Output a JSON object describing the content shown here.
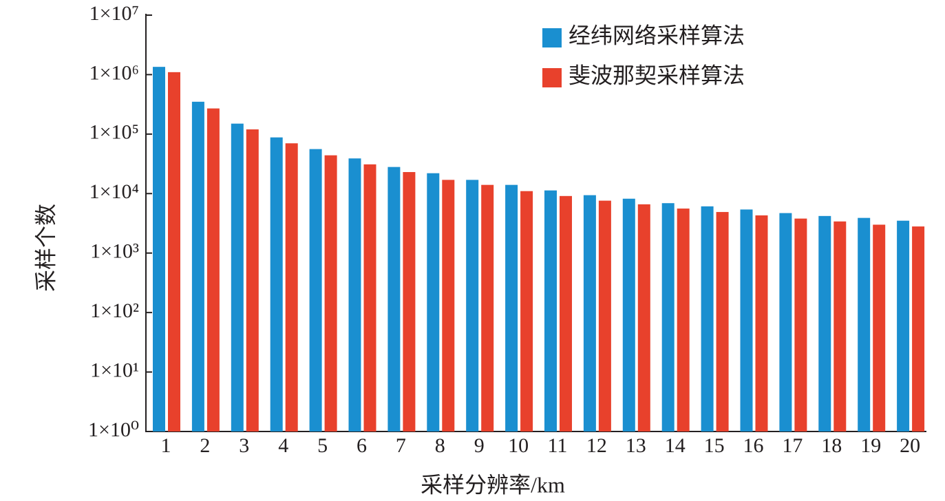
{
  "chart_data": {
    "type": "bar",
    "log_scale": true,
    "x_label": "采样分辨率/km",
    "y_label": "采样个数",
    "categories": [
      "1",
      "2",
      "3",
      "4",
      "5",
      "6",
      "7",
      "8",
      "9",
      "10",
      "11",
      "12",
      "13",
      "14",
      "15",
      "16",
      "17",
      "18",
      "19",
      "20"
    ],
    "series": [
      {
        "name": "经纬网络采样算法",
        "color": "#1a8fd0",
        "values": [
          1350000,
          350000,
          150000,
          88000,
          56000,
          39000,
          28000,
          22000,
          17000,
          14000,
          11300,
          9400,
          8200,
          6900,
          6100,
          5400,
          4700,
          4200,
          3900,
          3500
        ]
      },
      {
        "name": "斐波那契采样算法",
        "color": "#e8412c",
        "values": [
          1100000,
          270000,
          120000,
          70000,
          44000,
          31000,
          23000,
          17000,
          14000,
          11000,
          9100,
          7600,
          6600,
          5600,
          4900,
          4300,
          3800,
          3400,
          3000,
          2800
        ]
      }
    ],
    "ylim": [
      1,
      10000000
    ],
    "yticks": [
      {
        "value": 1,
        "label": "1×10⁰"
      },
      {
        "value": 10,
        "label": "1×10¹"
      },
      {
        "value": 100,
        "label": "1×10²"
      },
      {
        "value": 1000,
        "label": "1×10³"
      },
      {
        "value": 10000,
        "label": "1×10⁴"
      },
      {
        "value": 100000,
        "label": "1×10⁵"
      },
      {
        "value": 1000000,
        "label": "1×10⁶"
      },
      {
        "value": 10000000,
        "label": "1×10⁷"
      }
    ],
    "legend": "upper right"
  }
}
